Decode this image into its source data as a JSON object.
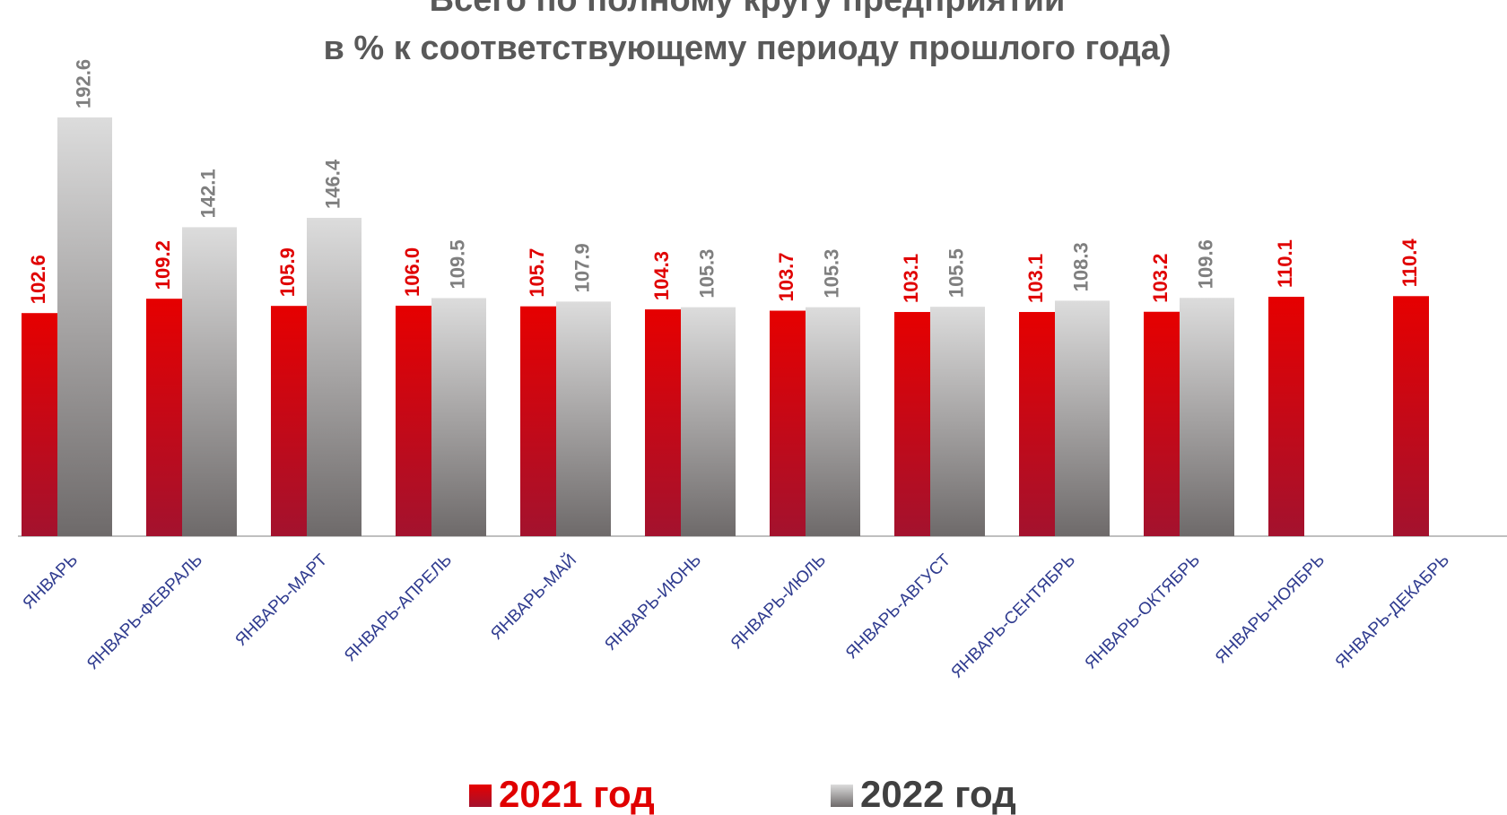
{
  "chart_data": {
    "type": "bar",
    "title": [
      "Всего  по полному кругу предприятий",
      "в % к соответствующему периоду прошлого года)"
    ],
    "categories": [
      "ЯНВАРЬ",
      "ЯНВАРЬ-ФЕВРАЛЬ",
      "ЯНВАРЬ-МАРТ",
      "ЯНВАРЬ-АПРЕЛЬ",
      "ЯНВАРЬ-МАЙ",
      "ЯНВАРЬ-ИЮНЬ",
      "ЯНВАРЬ-ИЮЛЬ",
      "ЯНВАРЬ-АВГУСТ",
      "ЯНВАРЬ-СЕНТЯБРЬ",
      "ЯНВАРЬ-ОКТЯБРЬ",
      "ЯНВАРЬ-НОЯБРЬ",
      "ЯНВАРЬ-ДЕКАБРЬ"
    ],
    "series": [
      {
        "name": "2021 год",
        "color": [
          "#e60000",
          "#a3122e"
        ],
        "label_color": "#e00000",
        "values": [
          102.6,
          109.2,
          105.9,
          106.0,
          105.7,
          104.3,
          103.7,
          103.1,
          103.1,
          103.2,
          110.1,
          110.4
        ],
        "value_labels": [
          "102.6",
          "109.2",
          "105.9",
          "106.0",
          "105.7",
          "104.3",
          "103.7",
          "103.1",
          "103.1",
          "103.2",
          "110.1",
          "110.4"
        ]
      },
      {
        "name": "2022 год",
        "color": [
          "#dcdcdc",
          "#6e6a6a"
        ],
        "label_color": "#7f7f7f",
        "values": [
          192.6,
          142.1,
          146.4,
          109.5,
          107.9,
          105.3,
          105.3,
          105.5,
          108.3,
          109.6,
          null,
          null
        ],
        "value_labels": [
          "192.6",
          "142.1",
          "146.4",
          "109.5",
          "107.9",
          "105.3",
          "105.3",
          "105.5",
          "108.3",
          "109.6",
          null,
          null
        ]
      }
    ],
    "ylim": [
      0,
      200
    ]
  }
}
